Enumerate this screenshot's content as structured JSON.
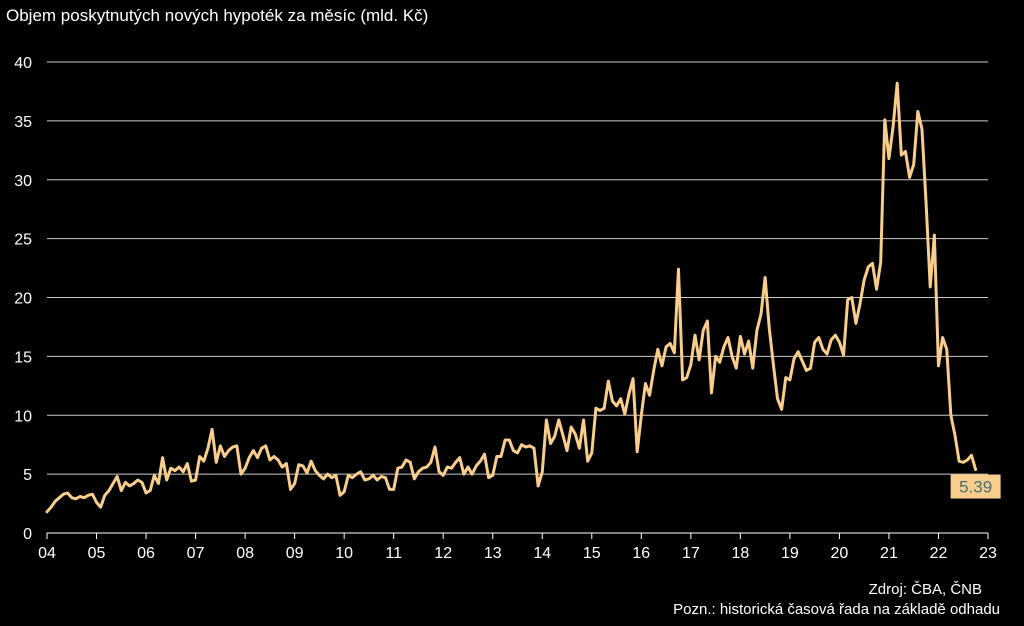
{
  "chart_data": {
    "type": "line",
    "title": "Objem poskytnutých nových hypoték za měsíc (mld. Kč)",
    "source": "Zdroj: ČBA, ČNB",
    "note": "Pozn.: historická časová řada na základě odhadu",
    "ylim": [
      0,
      40
    ],
    "yticks": [
      0,
      5,
      10,
      15,
      20,
      25,
      30,
      35,
      40
    ],
    "xticks": [
      "04",
      "05",
      "06",
      "07",
      "08",
      "09",
      "10",
      "11",
      "12",
      "13",
      "14",
      "15",
      "16",
      "17",
      "18",
      "19",
      "20",
      "21",
      "22",
      "23"
    ],
    "grid": true,
    "last_value_label": "5.39",
    "colors": {
      "line": "#F9CD8C",
      "label_bg": "#F9CD8C",
      "label_text": "#4E6E72",
      "grid": "#CCCCCC"
    },
    "series": [
      {
        "values": [
          1.8,
          2.2,
          2.7,
          3.0,
          3.3,
          3.4,
          3.0,
          2.9,
          3.1,
          3.0,
          3.2,
          3.3,
          2.6,
          2.2,
          3.2,
          3.6,
          4.2,
          4.8,
          3.6,
          4.3,
          4.0,
          4.2,
          4.5,
          4.3,
          3.4,
          3.6,
          4.9,
          4.2,
          6.4,
          4.5,
          5.5,
          5.3,
          5.6,
          5.2,
          5.9,
          4.4,
          4.5,
          6.5,
          6.1,
          7.2,
          8.8,
          6.0,
          7.4,
          6.5,
          7.0,
          7.3,
          7.4,
          5.0,
          5.5,
          6.4,
          7.0,
          6.4,
          7.2,
          7.4,
          6.2,
          6.5,
          6.2,
          5.6,
          5.9,
          3.7,
          4.2,
          5.8,
          5.7,
          5.1,
          6.1,
          5.3,
          4.9,
          4.6,
          5.0,
          4.7,
          4.9,
          3.2,
          3.5,
          4.9,
          4.7,
          5.0,
          5.2,
          4.5,
          4.6,
          4.9,
          4.5,
          4.8,
          4.7,
          3.7,
          3.7,
          5.5,
          5.6,
          6.2,
          6.0,
          4.6,
          5.2,
          5.5,
          5.6,
          6.0,
          7.3,
          5.2,
          4.9,
          5.6,
          5.5,
          6.0,
          6.4,
          5.0,
          5.6,
          5.0,
          5.7,
          6.1,
          6.7,
          4.7,
          4.9,
          6.5,
          6.5,
          7.9,
          7.9,
          7.0,
          6.8,
          7.5,
          7.3,
          7.4,
          7.2,
          4.0,
          5.2,
          9.6,
          7.6,
          8.2,
          9.6,
          8.3,
          7.0,
          9.0,
          8.4,
          7.2,
          9.6,
          6.1,
          6.8,
          10.6,
          10.4,
          10.6,
          12.9,
          11.2,
          10.8,
          11.4,
          10.1,
          11.8,
          13.1,
          6.9,
          10.0,
          12.7,
          11.7,
          13.8,
          15.6,
          14.2,
          15.8,
          16.1,
          15.3,
          22.4,
          13.0,
          13.2,
          14.3,
          16.8,
          14.7,
          17.2,
          18.0,
          11.9,
          15.0,
          14.5,
          15.8,
          16.6,
          15.0,
          14.0,
          16.7,
          15.2,
          16.3,
          14.0,
          17.2,
          18.6,
          21.7,
          17.4,
          14.3,
          11.4,
          10.5,
          13.2,
          13.0,
          14.8,
          15.4,
          14.6,
          13.8,
          14.0,
          16.2,
          16.6,
          15.6,
          15.2,
          16.4,
          16.8,
          16.2,
          15.1,
          19.8,
          20.0,
          17.8,
          19.5,
          21.5,
          22.6,
          22.9,
          20.7,
          23.0,
          35.1,
          31.8,
          34.5,
          38.2,
          32.1,
          32.4,
          30.2,
          31.3,
          35.8,
          34.3,
          28.0,
          20.9,
          25.3,
          14.2,
          16.6,
          15.6,
          10.0,
          8.3,
          6.1,
          6.0,
          6.2,
          6.6,
          5.39
        ]
      }
    ]
  }
}
